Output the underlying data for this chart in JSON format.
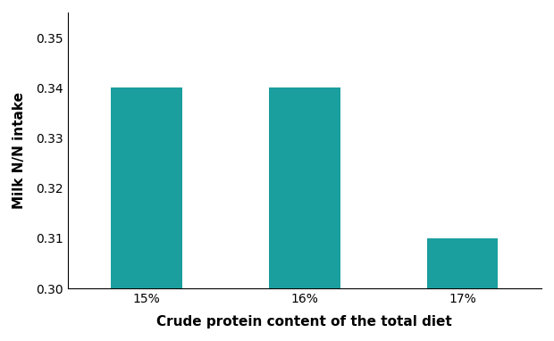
{
  "categories": [
    "15%",
    "16%",
    "17%"
  ],
  "values": [
    0.34,
    0.34,
    0.31
  ],
  "bar_color": "#1A9E9E",
  "xlabel": "Crude protein content of the total diet",
  "ylabel": "Milk N/N intake",
  "ylim": [
    0.3,
    0.355
  ],
  "yticks": [
    0.3,
    0.31,
    0.32,
    0.33,
    0.34,
    0.35
  ],
  "bar_width": 0.45,
  "background_color": "#ffffff",
  "xlabel_fontsize": 11,
  "ylabel_fontsize": 11,
  "tick_fontsize": 10,
  "edge_color": "none"
}
